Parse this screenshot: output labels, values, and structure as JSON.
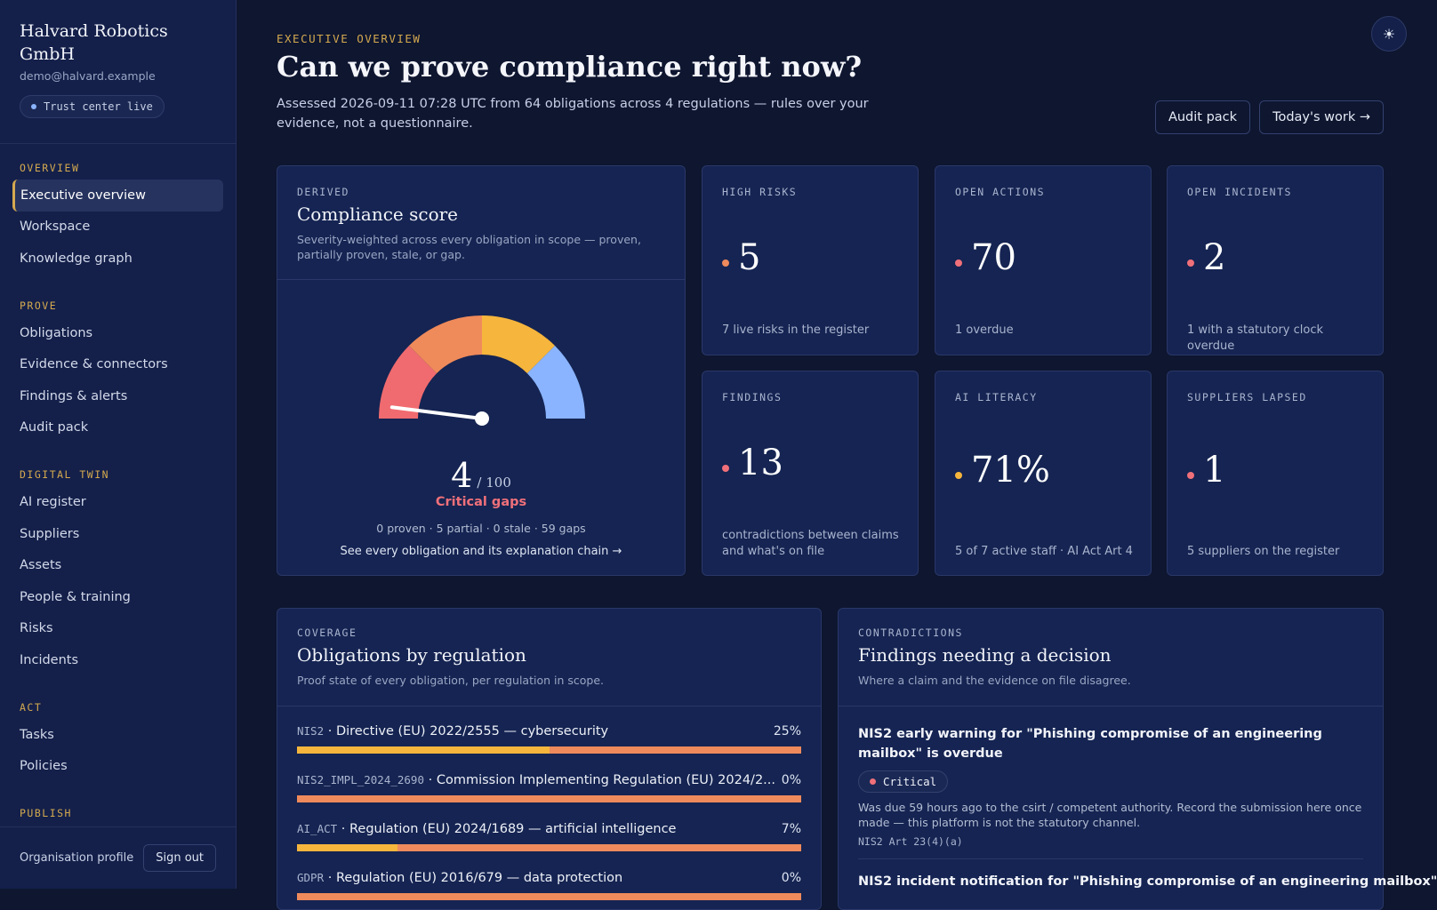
{
  "org": {
    "name": "Halvard Robotics GmbH",
    "email": "demo@halvard.example",
    "trust_label": "Trust center live"
  },
  "nav": {
    "overview": {
      "title": "OVERVIEW",
      "items": [
        "Executive overview",
        "Workspace",
        "Knowledge graph"
      ]
    },
    "prove": {
      "title": "PROVE",
      "items": [
        "Obligations",
        "Evidence & connectors",
        "Findings & alerts",
        "Audit pack"
      ]
    },
    "digital_twin": {
      "title": "DIGITAL TWIN",
      "items": [
        "AI register",
        "Suppliers",
        "Assets",
        "People & training",
        "Risks",
        "Incidents"
      ]
    },
    "act": {
      "title": "ACT",
      "items": [
        "Tasks",
        "Policies"
      ]
    },
    "publish": {
      "title": "PUBLISH"
    },
    "active": "Executive overview"
  },
  "footer": {
    "org_profile": "Organisation profile",
    "sign_out": "Sign out"
  },
  "header": {
    "eyebrow": "EXECUTIVE OVERVIEW",
    "title": "Can we prove compliance right now?",
    "subtitle": "Assessed 2026-09-11 07:28 UTC from 64 obligations across 4 regulations — rules over your evidence, not a questionnaire.",
    "audit_pack": "Audit pack",
    "todays_work": "Today's work →",
    "theme_icon": "sun-icon"
  },
  "score": {
    "label": "DERIVED",
    "title": "Compliance score",
    "desc": "Severity-weighted across every obligation in scope — proven, partially proven, stale, or gap.",
    "value": "4",
    "of": "/ 100",
    "value_num": 4,
    "status": "Critical gaps",
    "breakdown": "0 proven · 5 partial · 0 stale · 59 gaps",
    "link": "See every obligation and its explanation chain →",
    "gauge_colors": [
      "#f06b6f",
      "#ef8a5a",
      "#f6b53c",
      "#8ab4ff"
    ]
  },
  "metrics": [
    {
      "label": "HIGH RISKS",
      "value": "5",
      "note": "7 live risks in the register",
      "dot": "#ee8a5c"
    },
    {
      "label": "OPEN ACTIONS",
      "value": "70",
      "note": "1 overdue",
      "dot": "#f0707a"
    },
    {
      "label": "OPEN INCIDENTS",
      "value": "2",
      "note": "1 with a statutory clock overdue",
      "dot": "#f0707a"
    },
    {
      "label": "FINDINGS",
      "value": "13",
      "note": "contradictions between claims and what's on file",
      "dot": "#f0707a"
    },
    {
      "label": "AI LITERACY",
      "value": "71%",
      "note": "5 of 7 active staff · AI Act Art 4",
      "dot": "#f6b53c"
    },
    {
      "label": "SUPPLIERS LAPSED",
      "value": "1",
      "note": "5 suppliers on the register",
      "dot": "#f0707a"
    }
  ],
  "coverage": {
    "label": "COVERAGE",
    "title": "Obligations by regulation",
    "desc": "Proof state of every obligation, per regulation in scope.",
    "rows": [
      {
        "code": "NIS2",
        "name": "Directive (EU) 2022/2555 — cybersecurity",
        "pct": "25%",
        "proven": 0.5
      },
      {
        "code": "NIS2_IMPL_2024_2690",
        "name": "Commission Implementing Regulation (EU) 2024/2...",
        "pct": "0%",
        "proven": 0
      },
      {
        "code": "AI_ACT",
        "name": "Regulation (EU) 2024/1689 — artificial intelligence",
        "pct": "7%",
        "proven": 0.2
      },
      {
        "code": "GDPR",
        "name": "Regulation (EU) 2016/679 — data protection",
        "pct": "0%",
        "proven": 0
      }
    ]
  },
  "findings": {
    "label": "CONTRADICTIONS",
    "title": "Findings needing a decision",
    "desc": "Where a claim and the evidence on file disagree.",
    "items": [
      {
        "title": "NIS2 early warning for \"Phishing compromise of an engineering mailbox\" is overdue",
        "severity": "Critical",
        "body": "Was due 59 hours ago to the csirt / competent authority. Record the submission here once made — this platform is not the statutory channel.",
        "ref": "NIS2 Art 23(4)(a)"
      },
      {
        "title": "NIS2 incident notification for \"Phishing compromise of an engineering mailbox\""
      }
    ]
  }
}
